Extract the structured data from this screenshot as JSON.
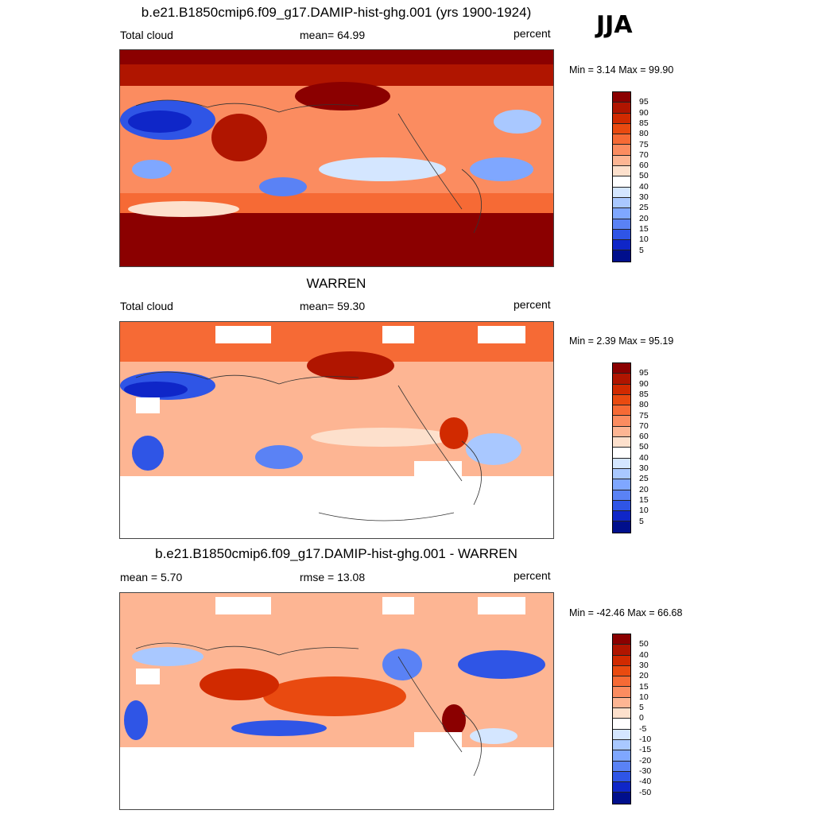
{
  "season": "JJA",
  "panels": [
    {
      "title": "b.e21.B1850cmip6.f09_g17.DAMIP-hist-ghg.001 (yrs 1900-1924)",
      "left_label": "Total cloud",
      "center_label": "mean=  64.99",
      "right_label": "percent",
      "minmax": "Min =   3.14 Max =  99.90",
      "colorbar": {
        "labels": [
          "95",
          "90",
          "85",
          "80",
          "75",
          "70",
          "60",
          "50",
          "40",
          "30",
          "25",
          "20",
          "15",
          "10",
          "5"
        ],
        "colors": [
          "#8b0000",
          "#b01500",
          "#d12a00",
          "#e94a10",
          "#f66a35",
          "#fb8c60",
          "#fdb593",
          "#fde0cc",
          "#ffffff",
          "#d4e6ff",
          "#a9c8ff",
          "#7fa7ff",
          "#5a82f5",
          "#2f55e6",
          "#0f26c8",
          "#000f8c"
        ]
      },
      "masked_antarctica": false
    },
    {
      "title": "WARREN",
      "left_label": "Total cloud",
      "center_label": "mean=  59.30",
      "right_label": "percent",
      "minmax": "Min =   2.39 Max =  95.19",
      "colorbar": {
        "labels": [
          "95",
          "90",
          "85",
          "80",
          "75",
          "70",
          "60",
          "50",
          "40",
          "30",
          "25",
          "20",
          "15",
          "10",
          "5"
        ],
        "colors": [
          "#8b0000",
          "#b01500",
          "#d12a00",
          "#e94a10",
          "#f66a35",
          "#fb8c60",
          "#fdb593",
          "#fde0cc",
          "#ffffff",
          "#d4e6ff",
          "#a9c8ff",
          "#7fa7ff",
          "#5a82f5",
          "#2f55e6",
          "#0f26c8",
          "#000f8c"
        ]
      },
      "masked_antarctica": true
    },
    {
      "title": "b.e21.B1850cmip6.f09_g17.DAMIP-hist-ghg.001 - WARREN",
      "left_label": "mean =   5.70",
      "center_label": "rmse =  13.08",
      "right_label": "percent",
      "minmax": "Min = -42.46 Max =  66.68",
      "colorbar": {
        "labels": [
          "50",
          "40",
          "30",
          "20",
          "15",
          "10",
          "5",
          "0",
          "-5",
          "-10",
          "-15",
          "-20",
          "-30",
          "-40",
          "-50"
        ],
        "colors": [
          "#8b0000",
          "#b01500",
          "#d12a00",
          "#e94a10",
          "#f66a35",
          "#fb8c60",
          "#fdb593",
          "#fde0cc",
          "#ffffff",
          "#d4e6ff",
          "#a9c8ff",
          "#7fa7ff",
          "#5a82f5",
          "#2f55e6",
          "#0f26c8",
          "#000f8c"
        ]
      },
      "masked_antarctica": true
    }
  ],
  "chart_data": {
    "type": "heatmap",
    "title": "JJA",
    "variable": "Total cloud",
    "units": "percent",
    "maps": [
      {
        "name": "b.e21.B1850cmip6.f09_g17.DAMIP-hist-ghg.001 (yrs 1900-1924)",
        "mean": 64.99,
        "min": 3.14,
        "max": 99.9,
        "levels": [
          5,
          10,
          15,
          20,
          25,
          30,
          40,
          50,
          60,
          70,
          75,
          80,
          85,
          90,
          95
        ]
      },
      {
        "name": "WARREN",
        "mean": 59.3,
        "min": 2.39,
        "max": 95.19,
        "levels": [
          5,
          10,
          15,
          20,
          25,
          30,
          40,
          50,
          60,
          70,
          75,
          80,
          85,
          90,
          95
        ]
      },
      {
        "name": "b.e21.B1850cmip6.f09_g17.DAMIP-hist-ghg.001 - WARREN",
        "mean": 5.7,
        "rmse": 13.08,
        "min": -42.46,
        "max": 66.68,
        "levels": [
          -50,
          -40,
          -30,
          -20,
          -15,
          -10,
          -5,
          0,
          5,
          10,
          15,
          20,
          30,
          40,
          50
        ]
      }
    ]
  }
}
